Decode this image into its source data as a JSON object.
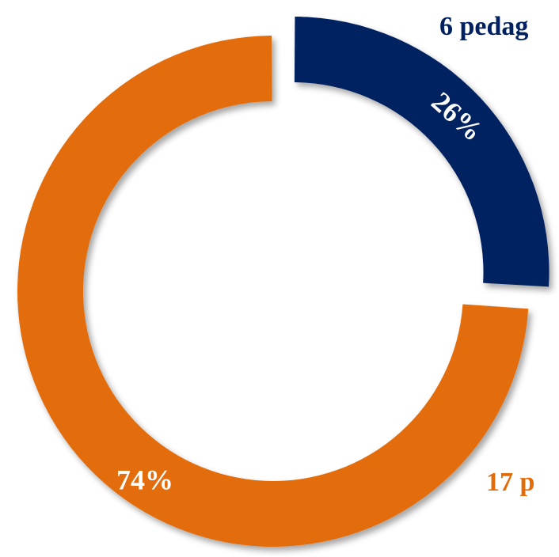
{
  "chart_data": {
    "type": "donut",
    "values": [
      26,
      74
    ],
    "value_labels": [
      "26%",
      "74%"
    ],
    "colors": [
      "#002060",
      "#e36c0a"
    ],
    "annotations": [
      "6 pedag",
      "17 p"
    ]
  }
}
